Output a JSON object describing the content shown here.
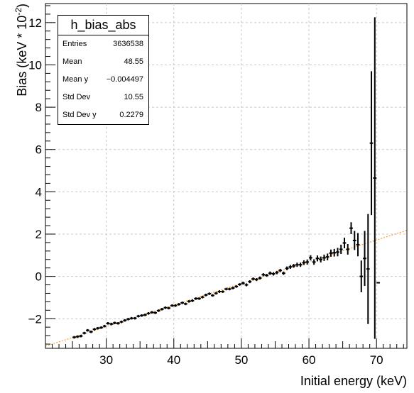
{
  "chart_data": {
    "type": "scatter",
    "title": "",
    "xlabel": "Initial energy (keV)",
    "ylabel": "Bias (keV * 10",
    "ylabel_exponent": "-2",
    "ylabel_suffix": ")",
    "xlim": [
      21,
      74.5
    ],
    "ylim": [
      -3.4,
      12.9
    ],
    "x_ticks": [
      30,
      40,
      50,
      60,
      70
    ],
    "y_ticks": [
      -2,
      0,
      2,
      4,
      6,
      8,
      10,
      12
    ],
    "x_tick_labels": [
      "30",
      "40",
      "50",
      "60",
      "70"
    ],
    "y_tick_labels": [
      "−2",
      "0",
      "2",
      "4",
      "6",
      "8",
      "10",
      "12"
    ],
    "grid": true,
    "legend": "none",
    "marker_color": "#000000",
    "fit_color": "#f0a030",
    "fit_line": {
      "x": [
        21,
        74.5
      ],
      "y": [
        -3.3,
        2.18
      ]
    },
    "x_bin_half_width": 0.25,
    "series": [
      {
        "x": [
          25.25,
          25.75,
          26.25,
          26.75,
          27.25,
          27.75,
          28.25,
          28.75,
          29.25,
          29.75,
          30.25,
          30.75,
          31.25,
          31.75,
          32.25,
          32.75,
          33.25,
          33.75,
          34.25,
          34.75,
          35.25,
          35.75,
          36.25,
          36.75,
          37.25,
          37.75,
          38.25,
          38.75,
          39.25,
          39.75,
          40.25,
          40.75,
          41.25,
          41.75,
          42.25,
          42.75,
          43.25,
          43.75,
          44.25,
          44.75,
          45.25,
          45.75,
          46.25,
          46.75,
          47.25,
          47.75,
          48.25,
          48.75,
          49.25,
          49.75,
          50.25,
          50.75,
          51.25,
          51.75,
          52.25,
          52.75,
          53.25,
          53.75,
          54.25,
          54.75,
          55.25,
          55.75,
          56.25,
          56.75,
          57.25,
          57.75,
          58.25,
          58.75,
          59.25,
          59.75,
          60.25,
          60.75,
          61.25,
          61.75,
          62.25,
          62.75,
          63.25,
          63.75,
          64.25,
          64.75,
          65.25,
          65.75,
          66.25,
          66.75,
          67.25,
          67.75,
          68.25,
          68.75,
          69.25,
          69.75,
          70.25
        ],
        "y": [
          -2.88,
          -2.85,
          -2.82,
          -2.68,
          -2.55,
          -2.62,
          -2.5,
          -2.45,
          -2.42,
          -2.35,
          -2.22,
          -2.25,
          -2.2,
          -2.22,
          -2.15,
          -2.08,
          -2.02,
          -1.98,
          -1.98,
          -1.88,
          -1.85,
          -1.82,
          -1.75,
          -1.7,
          -1.72,
          -1.62,
          -1.55,
          -1.48,
          -1.5,
          -1.38,
          -1.38,
          -1.32,
          -1.25,
          -1.3,
          -1.18,
          -1.15,
          -1.05,
          -1.05,
          -0.98,
          -0.88,
          -0.82,
          -0.9,
          -0.8,
          -0.72,
          -0.72,
          -0.6,
          -0.6,
          -0.55,
          -0.48,
          -0.38,
          -0.32,
          -0.4,
          -0.25,
          -0.12,
          -0.15,
          -0.08,
          0.08,
          0.05,
          0.15,
          0.12,
          0.18,
          0.28,
          0.15,
          0.38,
          0.45,
          0.5,
          0.55,
          0.55,
          0.65,
          0.68,
          0.88,
          0.68,
          0.85,
          0.8,
          0.88,
          0.92,
          1.1,
          1.12,
          1.15,
          1.28,
          1.58,
          1.28,
          2.28,
          1.7,
          1.5,
          0.0,
          0.85,
          0.35,
          6.3,
          4.65,
          -0.3
        ],
        "yerr": [
          0.06,
          0.06,
          0.06,
          0.06,
          0.06,
          0.06,
          0.06,
          0.06,
          0.06,
          0.06,
          0.06,
          0.06,
          0.06,
          0.06,
          0.06,
          0.06,
          0.06,
          0.06,
          0.06,
          0.06,
          0.06,
          0.06,
          0.06,
          0.06,
          0.06,
          0.06,
          0.06,
          0.06,
          0.06,
          0.06,
          0.06,
          0.06,
          0.06,
          0.06,
          0.06,
          0.06,
          0.06,
          0.06,
          0.06,
          0.06,
          0.06,
          0.06,
          0.06,
          0.06,
          0.06,
          0.06,
          0.06,
          0.06,
          0.06,
          0.06,
          0.07,
          0.07,
          0.07,
          0.07,
          0.07,
          0.07,
          0.07,
          0.07,
          0.08,
          0.08,
          0.08,
          0.08,
          0.08,
          0.09,
          0.09,
          0.09,
          0.1,
          0.1,
          0.11,
          0.12,
          0.12,
          0.13,
          0.14,
          0.14,
          0.15,
          0.16,
          0.17,
          0.18,
          0.2,
          0.22,
          0.25,
          0.25,
          0.28,
          0.45,
          0.55,
          0.75,
          1.3,
          2.6,
          3.4,
          7.6,
          0.0
        ]
      }
    ]
  },
  "stats": {
    "title": "h_bias_abs",
    "rows": [
      {
        "label": "Entries",
        "value": "3636538"
      },
      {
        "label": "Mean",
        "value": "48.55"
      },
      {
        "label": "Mean y",
        "value": "−0.004497"
      },
      {
        "label": "Std Dev",
        "value": "10.55"
      },
      {
        "label": "Std Dev y",
        "value": "0.2279"
      }
    ]
  }
}
